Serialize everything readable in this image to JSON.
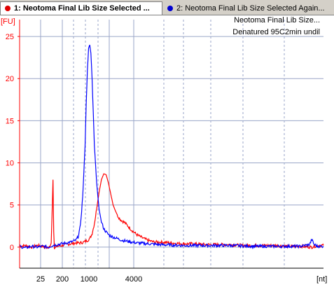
{
  "tabs": [
    {
      "label": "1: Neotoma Final Lib Size Selected ...",
      "color": "#e00000",
      "active": true
    },
    {
      "label": "2: Neotoma Final Lib Size Selected Again...",
      "color": "#0000d0",
      "active": false
    }
  ],
  "chart_data": {
    "type": "line",
    "title": "",
    "ylabel": "[FU]",
    "xlabel": "[nt]",
    "ylim": [
      -2.5,
      27
    ],
    "yticks": [
      0,
      5,
      10,
      15,
      20,
      25
    ],
    "xticks": [
      "25",
      "200",
      "1000",
      "4000"
    ],
    "legend": [
      "Neotoma Final Lib Size...",
      "Denatured 95C2min undil"
    ],
    "legend_placement": "top-right",
    "grid": true,
    "colors": {
      "series1": "#ff0000",
      "series2": "#0000ff",
      "axis": "#ff0000",
      "grid": "#9aa6c8"
    },
    "series": [
      {
        "color": "#ff0000",
        "points": [
          [
            0,
            0.1
          ],
          [
            5,
            0.2
          ],
          [
            10,
            0.0
          ],
          [
            15,
            0.2
          ],
          [
            20,
            0.1
          ],
          [
            25,
            -0.1
          ],
          [
            27,
            0.5
          ],
          [
            28,
            5
          ],
          [
            28.6,
            8
          ],
          [
            29.2,
            2
          ],
          [
            29.8,
            -0.2
          ],
          [
            32,
            0.1
          ],
          [
            36,
            0.2
          ],
          [
            40,
            0.3
          ],
          [
            44,
            0.4
          ],
          [
            48,
            0.5
          ],
          [
            52,
            0.5
          ],
          [
            55,
            0.6
          ],
          [
            58,
            0.8
          ],
          [
            60,
            1.0
          ],
          [
            62,
            1.6
          ],
          [
            64,
            2.8
          ],
          [
            66,
            4.6
          ],
          [
            68,
            6.5
          ],
          [
            70,
            8.0
          ],
          [
            72,
            8.7
          ],
          [
            74,
            8.6
          ],
          [
            76,
            7.6
          ],
          [
            78,
            6.3
          ],
          [
            80,
            5.0
          ],
          [
            82,
            4.3
          ],
          [
            84,
            3.7
          ],
          [
            86,
            3.3
          ],
          [
            88,
            3.1
          ],
          [
            90,
            2.9
          ],
          [
            92,
            2.6
          ],
          [
            94,
            2.3
          ],
          [
            96,
            2.0
          ],
          [
            100,
            1.5
          ],
          [
            105,
            1.1
          ],
          [
            110,
            0.8
          ],
          [
            115,
            0.6
          ],
          [
            120,
            0.6
          ],
          [
            130,
            0.5
          ],
          [
            140,
            0.4
          ],
          [
            150,
            0.4
          ],
          [
            160,
            0.3
          ],
          [
            170,
            0.3
          ],
          [
            180,
            0.3
          ],
          [
            190,
            0.2
          ],
          [
            200,
            0.2
          ],
          [
            210,
            0.2
          ],
          [
            220,
            0.2
          ],
          [
            230,
            0.1
          ],
          [
            240,
            0.1
          ],
          [
            250,
            0.0
          ],
          [
            255,
            0.2
          ],
          [
            260,
            0.2
          ]
        ]
      },
      {
        "color": "#0000ff",
        "points": [
          [
            0,
            0.1
          ],
          [
            5,
            -0.1
          ],
          [
            10,
            0.1
          ],
          [
            15,
            0.0
          ],
          [
            20,
            0.1
          ],
          [
            25,
            0.0
          ],
          [
            28,
            0.2
          ],
          [
            32,
            0.3
          ],
          [
            36,
            0.4
          ],
          [
            40,
            0.5
          ],
          [
            44,
            0.6
          ],
          [
            48,
            0.8
          ],
          [
            50,
            1.2
          ],
          [
            52,
            2.5
          ],
          [
            54,
            6.0
          ],
          [
            56,
            12.0
          ],
          [
            57,
            17.0
          ],
          [
            58,
            21.0
          ],
          [
            59,
            23.6
          ],
          [
            60,
            24.0
          ],
          [
            61,
            23.0
          ],
          [
            62,
            20.0
          ],
          [
            63,
            16.0
          ],
          [
            64,
            12.0
          ],
          [
            66,
            7.5
          ],
          [
            68,
            4.5
          ],
          [
            70,
            3.0
          ],
          [
            72,
            2.2
          ],
          [
            74,
            1.8
          ],
          [
            76,
            1.5
          ],
          [
            78,
            1.3
          ],
          [
            80,
            1.2
          ],
          [
            84,
            1.0
          ],
          [
            88,
            0.8
          ],
          [
            92,
            0.7
          ],
          [
            96,
            0.6
          ],
          [
            100,
            0.5
          ],
          [
            110,
            0.4
          ],
          [
            120,
            0.3
          ],
          [
            140,
            0.2
          ],
          [
            160,
            0.2
          ],
          [
            180,
            0.2
          ],
          [
            200,
            0.1
          ],
          [
            220,
            0.1
          ],
          [
            240,
            0.1
          ],
          [
            248,
            0.3
          ],
          [
            250,
            0.9
          ],
          [
            252,
            0.3
          ],
          [
            255,
            0.1
          ],
          [
            260,
            0.1
          ]
        ]
      }
    ]
  }
}
